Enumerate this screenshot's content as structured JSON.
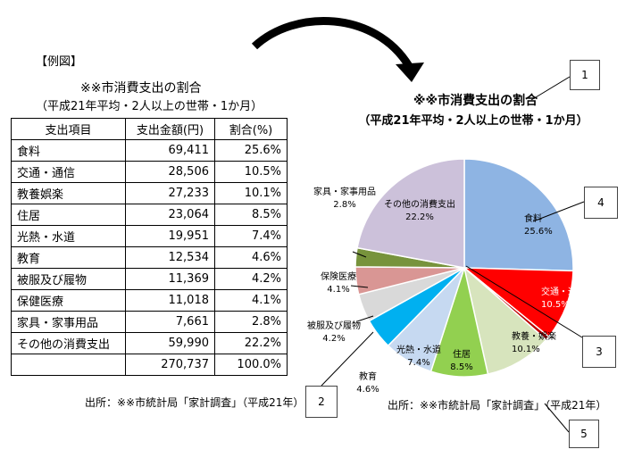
{
  "example_label": "【例図】",
  "left_title": "※※市消費支出の割合",
  "left_subtitle": "（平成21年平均・2人以上の世帯・1か月）",
  "table": {
    "headers": [
      "支出項目",
      "支出金額(円)",
      "割合(%)"
    ],
    "rows": [
      [
        "食料",
        "69,411",
        "25.6%"
      ],
      [
        "交通・通信",
        "28,506",
        "10.5%"
      ],
      [
        "教養娯楽",
        "27,233",
        "10.1%"
      ],
      [
        "住居",
        "23,064",
        "8.5%"
      ],
      [
        "光熱・水道",
        "19,951",
        "7.4%"
      ],
      [
        "教育",
        "12,534",
        "4.6%"
      ],
      [
        "被服及び履物",
        "11,369",
        "4.2%"
      ],
      [
        "保健医療",
        "11,018",
        "4.1%"
      ],
      [
        "家具・家事用品",
        "7,661",
        "2.8%"
      ],
      [
        "その他の消費支出",
        "59,990",
        "22.2%"
      ],
      [
        "",
        "270,737",
        "100.0%"
      ]
    ]
  },
  "left_source": "出所：※※市統計局「家計調査」（平成21年）",
  "right_source": "出所：※※市統計局「家計調査」（平成21年）",
  "callouts": [
    "1",
    "2",
    "3",
    "4",
    "5"
  ],
  "chart_data": {
    "type": "pie",
    "title": "※※市消費支出の割合",
    "subtitle": "（平成21年平均・2人以上の世帯・1か月）",
    "slices": [
      {
        "label": "食料",
        "value": 25.6,
        "value_label": "25.6%",
        "color": "#8eb4e3"
      },
      {
        "label": "交通・通信",
        "value": 10.5,
        "value_label": "10.5%",
        "color": "#ff0000"
      },
      {
        "label": "",
        "value": 0.6,
        "value_label": "",
        "color": "#c00000"
      },
      {
        "label": "教養・娯楽",
        "value": 10.1,
        "value_label": "10.1%",
        "color": "#d7e4bd"
      },
      {
        "label": "住居",
        "value": 8.5,
        "value_label": "8.5%",
        "color": "#92d050"
      },
      {
        "label": "光熱・水道",
        "value": 7.4,
        "value_label": "7.4%",
        "color": "#c6d9f1"
      },
      {
        "label": "教育",
        "value": 4.6,
        "value_label": "4.6%",
        "color": "#00b0f0"
      },
      {
        "label": "被服及び履物",
        "value": 4.2,
        "value_label": "4.2%",
        "color": "#d9d9d9"
      },
      {
        "label": "保険医療",
        "value": 4.1,
        "value_label": "4.1%",
        "color": "#d99694"
      },
      {
        "label": "家具・家事用品",
        "value": 2.8,
        "value_label": "2.8%",
        "color": "#77933c"
      },
      {
        "label": "その他の消費支出",
        "value": 22.2,
        "value_label": "22.2%",
        "color": "#ccc1da"
      }
    ]
  }
}
